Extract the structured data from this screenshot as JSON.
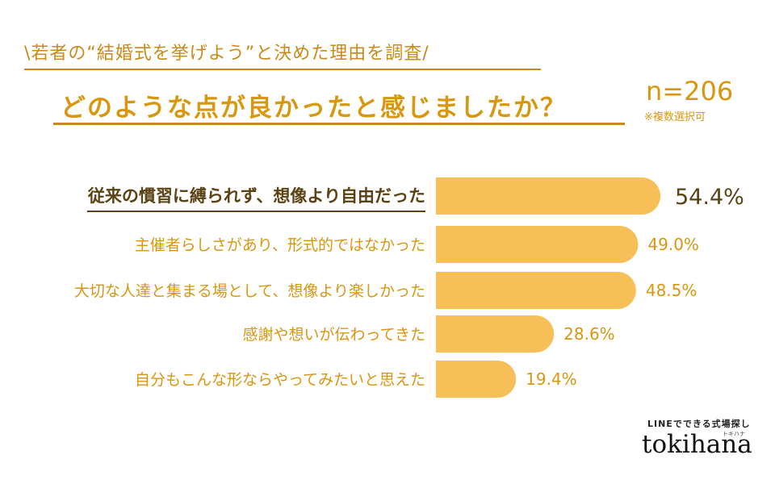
{
  "header": {
    "subtitle": "\\若者の“結婚式を挙げよう”と決めた理由を調査/",
    "title": "どのような点が良かったと感じましたか？",
    "sample": "n=206",
    "note": "※複数選択可"
  },
  "chart_data": {
    "type": "bar",
    "orientation": "horizontal",
    "categories": [
      "従来の慣習に縛られず、想像より自由だった",
      "主催者らしさがあり、形式的ではなかった",
      "大切な人達と集まる場として、想像より楽しかった",
      "感謝や想いが伝わってきた",
      "自分もこんな形ならやってみたいと思えた"
    ],
    "values": [
      54.4,
      49.0,
      48.5,
      28.6,
      19.4
    ],
    "value_labels": [
      "54.4%",
      "49.0%",
      "48.5%",
      "28.6%",
      "19.4%"
    ],
    "highlight_index": 0,
    "xlim": [
      0,
      54.4
    ],
    "grid": false,
    "legend": "none"
  },
  "colors": {
    "bar": "#f7bf57",
    "label": "#d9960f",
    "highlight_text": "#5a4214"
  },
  "brand": {
    "tagline": "LINEでできる式場探し",
    "sub": "トキハナ",
    "logo": "tokihana"
  }
}
